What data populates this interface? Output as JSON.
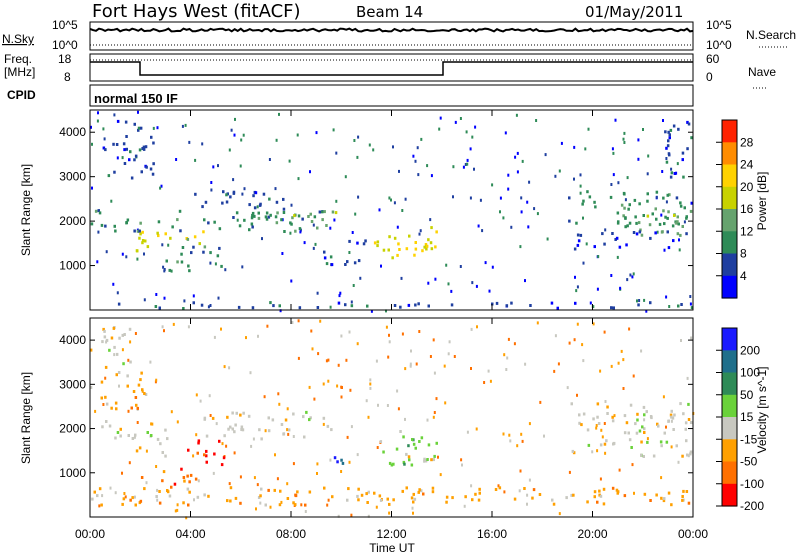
{
  "header": {
    "title": "Fort Hays West (fitACF)",
    "beam": "Beam 14",
    "date": "01/May/2011"
  },
  "summary_panels": {
    "nsky_label": "N.Sky",
    "nsky_ticks": [
      "10^5",
      "10^0"
    ],
    "nsearch_label": "N.Search",
    "nsearch_ticks": [
      "10^5",
      "10^0"
    ],
    "freq_label_line1": "Freq.",
    "freq_label_line2": "[MHz]",
    "freq_ticks": [
      "18",
      "8"
    ],
    "nave_label": "Nave",
    "nave_ticks": [
      "60",
      "0"
    ],
    "cpid_label": "CPID",
    "cpid_value": "normal 150 IF"
  },
  "chart_data": [
    {
      "type": "heatmap",
      "name": "power",
      "ylabel": "Slant Range [km]",
      "yticks": [
        1000,
        2000,
        3000,
        4000
      ],
      "ylim": [
        0,
        4500
      ],
      "colorbar_label": "Power [dB]",
      "colorbar_ticks": [
        "28",
        "24",
        "20",
        "16",
        "12",
        "8",
        "4"
      ],
      "colors": [
        "#0000ff",
        "#1f3fa0",
        "#2e8b57",
        "#66a36e",
        "#c8d200",
        "#ffd200",
        "#ff8c00",
        "#ff2200"
      ],
      "regions": [
        {
          "t0": 0.0,
          "t1": 9.5,
          "r0": 1800,
          "r1": 2300,
          "level": 2
        },
        {
          "t0": 0.5,
          "t1": 2.5,
          "r0": 3000,
          "r1": 4300,
          "level": 1
        },
        {
          "t0": 1.8,
          "t1": 3.5,
          "r0": 1300,
          "r1": 1800,
          "level": 4
        },
        {
          "t0": 3.0,
          "t1": 5.2,
          "r0": 900,
          "r1": 1500,
          "level": 2
        },
        {
          "t0": 3.5,
          "t1": 4.5,
          "r0": 1500,
          "r1": 1800,
          "level": 4
        },
        {
          "t0": 6.5,
          "t1": 9.8,
          "r0": 1900,
          "r1": 2300,
          "level": 3
        },
        {
          "t0": 9.0,
          "t1": 11.0,
          "r0": 1000,
          "r1": 1700,
          "level": 1
        },
        {
          "t0": 11.3,
          "t1": 13.8,
          "r0": 1200,
          "r1": 1900,
          "level": 4
        },
        {
          "t0": 12.0,
          "t1": 13.5,
          "r0": 1300,
          "r1": 1600,
          "level": 5
        },
        {
          "t0": 19.0,
          "t1": 23.9,
          "r0": 1900,
          "r1": 2700,
          "level": 2
        },
        {
          "t0": 21.5,
          "t1": 23.9,
          "r0": 1700,
          "r1": 2300,
          "level": 3
        },
        {
          "t0": 19.0,
          "t1": 23.9,
          "r0": 1400,
          "r1": 1800,
          "level": 1
        },
        {
          "t0": 22.8,
          "t1": 23.9,
          "r0": 2800,
          "r1": 4300,
          "level": 1
        },
        {
          "t0": 0.0,
          "t1": 24.0,
          "r0": 60,
          "r1": 200,
          "level": 1
        },
        {
          "t0": 4.0,
          "t1": 8.0,
          "r0": 2300,
          "r1": 2700,
          "level": 1
        }
      ]
    },
    {
      "type": "heatmap",
      "name": "velocity",
      "ylabel": "Slant Range [km]",
      "yticks": [
        1000,
        2000,
        3000,
        4000
      ],
      "ylim": [
        0,
        4500
      ],
      "colorbar_label": "Velocity [m s^-1]",
      "colorbar_ticks": [
        "200",
        "100",
        "50",
        "15",
        "-15",
        "-50",
        "-100",
        "-200"
      ],
      "colors": [
        "#1a1aff",
        "#1f6f8b",
        "#2e8b57",
        "#6ad23a",
        "#c8c8c0",
        "#ffa000",
        "#ff7000",
        "#ff0000"
      ],
      "regions": [
        {
          "t0": 0.0,
          "t1": 2.0,
          "r0": 1800,
          "r1": 2200,
          "level": 4
        },
        {
          "t0": 0.3,
          "t1": 2.3,
          "r0": 2400,
          "r1": 3300,
          "level": 5
        },
        {
          "t0": 0.4,
          "t1": 1.8,
          "r0": 3300,
          "r1": 4400,
          "level": 4
        },
        {
          "t0": 1.8,
          "t1": 3.2,
          "r0": 1400,
          "r1": 2000,
          "level": 4
        },
        {
          "t0": 3.5,
          "t1": 5.3,
          "r0": 1100,
          "r1": 1800,
          "level": 7
        },
        {
          "t0": 2.0,
          "t1": 4.8,
          "r0": 700,
          "r1": 1100,
          "level": 6
        },
        {
          "t0": 4.5,
          "t1": 9.0,
          "r0": 1800,
          "r1": 2400,
          "level": 4
        },
        {
          "t0": 8.5,
          "t1": 9.6,
          "r0": 2000,
          "r1": 2400,
          "level": 4
        },
        {
          "t0": 9.2,
          "t1": 10.2,
          "r0": 1100,
          "r1": 1600,
          "level": 0
        },
        {
          "t0": 11.5,
          "t1": 13.8,
          "r0": 1200,
          "r1": 2000,
          "level": 3
        },
        {
          "t0": 12.3,
          "t1": 13.8,
          "r0": 1100,
          "r1": 1500,
          "level": 4
        },
        {
          "t0": 19.0,
          "t1": 23.9,
          "r0": 1900,
          "r1": 2600,
          "level": 4
        },
        {
          "t0": 19.0,
          "t1": 23.9,
          "r0": 1400,
          "r1": 1800,
          "level": 4
        },
        {
          "t0": 0.0,
          "t1": 24.0,
          "r0": 300,
          "r1": 700,
          "level": 5
        }
      ]
    }
  ],
  "time_axis": {
    "label": "Time UT",
    "ticks": [
      "00:00",
      "04:00",
      "08:00",
      "12:00",
      "16:00",
      "20:00",
      "00:00"
    ]
  }
}
